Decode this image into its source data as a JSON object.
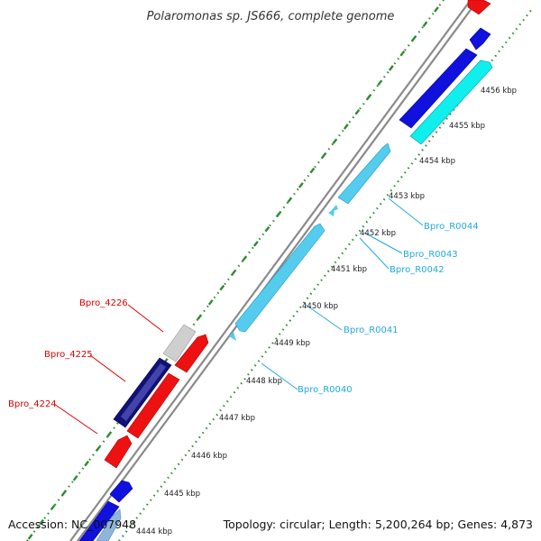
{
  "title": "Polaromonas sp. JS666, complete genome",
  "footer": {
    "accession": "Accession: NC_007948",
    "topology": "Topology: circular; Length: 5,200,264 bp; Genes: 4,873"
  },
  "ticks": [
    "4444 kbp",
    "4445 kbp",
    "4446 kbp",
    "4447 kbp",
    "4448 kbp",
    "4449 kbp",
    "4450 kbp",
    "4451 kbp",
    "4452 kbp",
    "4453 kbp",
    "4454 kbp",
    "4455 kbp",
    "4456 kbp"
  ],
  "gene_labels": {
    "bpro_4226": "Bpro_4226",
    "bpro_4225": "Bpro_4225",
    "bpro_4224": "Bpro_4224",
    "bpro_r0040": "Bpro_R0040",
    "bpro_r0041": "Bpro_R0041",
    "bpro_r0042": "Bpro_R0042",
    "bpro_r0043": "Bpro_R0043",
    "bpro_r0044": "Bpro_R0044"
  },
  "colors": {
    "backbone": "#8a8a8a",
    "dotted_track": "#2e8b2e",
    "rna": "#55ccee",
    "cds_forward_blue": "#1111dd",
    "cds_navy": "#111177",
    "cds_cyan": "#11eeee",
    "cds_red": "#ee1111",
    "cds_gray": "#c8c8c8",
    "label_red": "#dd0000",
    "label_cyan": "#22aadd"
  }
}
